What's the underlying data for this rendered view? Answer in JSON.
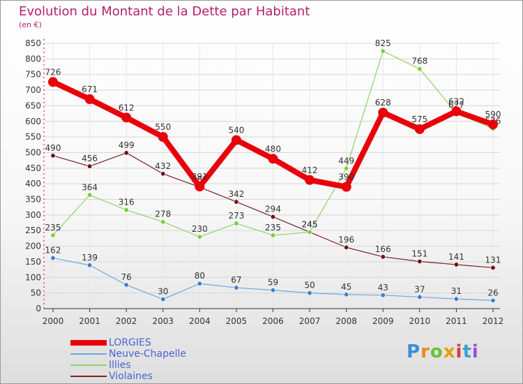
{
  "title": "Evolution du Montant de la Dette par Habitant",
  "subtitle": "(en €)",
  "logo_text": "Proxiti",
  "chart_data": {
    "type": "line",
    "title": "Evolution du Montant de la Dette par Habitant",
    "subtitle": "(en €)",
    "x": [
      "2000",
      "2001",
      "2002",
      "2003",
      "2004",
      "2005",
      "2006",
      "2007",
      "2008",
      "2009",
      "2010",
      "2011",
      "2012"
    ],
    "y_ticks": [
      "0",
      "50",
      "100",
      "150",
      "200",
      "250",
      "300",
      "350",
      "400",
      "450",
      "500",
      "550",
      "600",
      "650",
      "700",
      "750",
      "800",
      "850"
    ],
    "ylim": [
      0,
      850
    ],
    "grid": "horizontal",
    "legend_position": "bottom-left",
    "series": [
      {
        "name": "LORGIES",
        "color": "#e8000b",
        "values": [
          726,
          671,
          612,
          550,
          391,
          540,
          480,
          412,
          390,
          628,
          575,
          632,
          590
        ]
      },
      {
        "name": "Neuve-Chapelle",
        "color": "#6fa8dc",
        "values": [
          162,
          139,
          76,
          30,
          80,
          67,
          59,
          50,
          45,
          43,
          37,
          31,
          26
        ]
      },
      {
        "name": "Illies",
        "color": "#8fd36a",
        "values": [
          235,
          364,
          316,
          278,
          230,
          273,
          235,
          245,
          449,
          825,
          768,
          627,
          576
        ]
      },
      {
        "name": "Violaines",
        "color": "#7b1e24",
        "values": [
          490,
          456,
          499,
          432,
          389,
          342,
          294,
          245,
          196,
          166,
          151,
          141,
          131
        ]
      }
    ]
  }
}
